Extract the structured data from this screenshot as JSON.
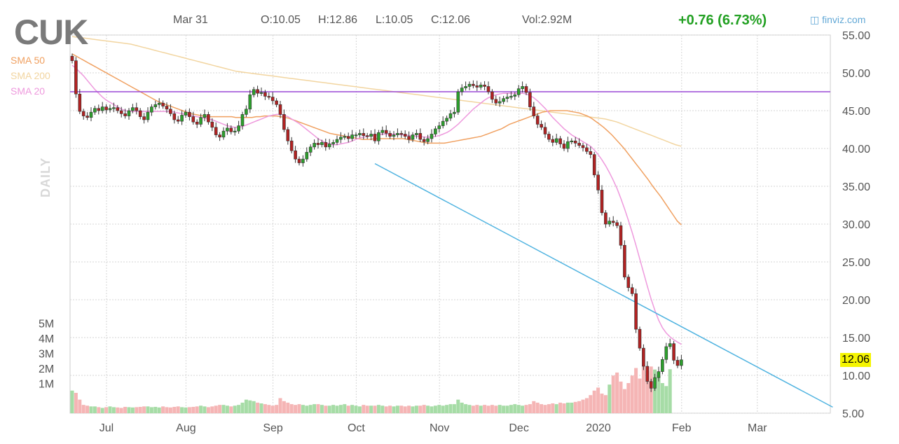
{
  "header": {
    "ticker": "CUK",
    "date": "Mar 31",
    "open": "O:10.05",
    "high": "H:12.86",
    "low": "L:10.05",
    "close": "C:12.06",
    "volume": "Vol:2.92M",
    "change": "+0.76 (6.73%)",
    "brand": "finviz.com",
    "brand_icon": "finviz-logo-icon"
  },
  "overlays": {
    "sma50": "SMA 50",
    "sma200": "SMA 200",
    "sma20": "SMA 20",
    "timeframe": "DAILY",
    "last_price": "12.06"
  },
  "colors": {
    "up": "#2ca02c",
    "down": "#b22222",
    "sma50": "#f0a060",
    "sma200": "#f2d5a0",
    "sma20": "#ee99dd",
    "resistance": "#9a49d6",
    "trendline": "#4fb3e0",
    "vol_up": "#a6dca6",
    "vol_down": "#f5b5b5",
    "last_price_bg": "#f5f500"
  },
  "chart_data": {
    "type": "candlestick",
    "title": "CUK",
    "ylim": [
      5,
      55
    ],
    "y_ticks": [
      "55.00",
      "50.00",
      "45.00",
      "40.00",
      "35.00",
      "30.00",
      "25.00",
      "20.00",
      "15.00",
      "10.00",
      "5.00"
    ],
    "y_tick_values": [
      55,
      50,
      45,
      40,
      35,
      30,
      25,
      20,
      15,
      10,
      5
    ],
    "volume_ticks": [
      "5M",
      "4M",
      "3M",
      "2M",
      "1M"
    ],
    "volume_tick_values": [
      5,
      4,
      3,
      2,
      1
    ],
    "x_labels": [
      "Jul",
      "Aug",
      "Sep",
      "Oct",
      "Nov",
      "Dec",
      "2020",
      "Feb",
      "Mar"
    ],
    "x_label_index": [
      10,
      31,
      54,
      76,
      98,
      119,
      140,
      162,
      182
    ],
    "grid": true,
    "price_series": [
      51.6,
      47.2,
      44.9,
      44.3,
      44.1,
      44.8,
      45.3,
      45.0,
      45.5,
      45.1,
      45.3,
      45.4,
      45.0,
      44.6,
      44.3,
      45.0,
      45.4,
      45.0,
      44.2,
      43.8,
      44.8,
      45.5,
      45.8,
      46.0,
      45.6,
      45.2,
      44.6,
      43.8,
      43.6,
      44.4,
      44.8,
      44.2,
      43.5,
      43.2,
      44.1,
      44.5,
      43.5,
      42.8,
      41.8,
      41.5,
      42.3,
      42.7,
      42.2,
      42.3,
      43.0,
      44.5,
      45.2,
      47.1,
      47.8,
      47.3,
      47.4,
      46.9,
      46.8,
      46.3,
      45.8,
      44.5,
      42.5,
      41.0,
      39.7,
      38.6,
      38.1,
      38.6,
      39.5,
      40.2,
      40.7,
      40.5,
      40.8,
      40.2,
      40.6,
      40.8,
      41.2,
      41.5,
      41.6,
      41.3,
      41.8,
      41.8,
      42.0,
      41.7,
      41.6,
      41.9,
      41.0,
      42.1,
      42.4,
      42.0,
      41.6,
      41.8,
      42.0,
      41.9,
      41.6,
      41.2,
      41.8,
      42.0,
      41.2,
      40.9,
      41.3,
      41.9,
      42.6,
      43.0,
      43.6,
      44.0,
      44.6,
      44.8,
      47.5,
      48.0,
      48.2,
      48.5,
      48.3,
      48.1,
      48.4,
      48.2,
      47.5,
      46.5,
      46.0,
      46.2,
      46.6,
      46.8,
      46.9,
      47.1,
      47.9,
      48.2,
      47.4,
      45.5,
      44.3,
      43.2,
      42.8,
      41.9,
      41.2,
      40.8,
      41.3,
      40.6,
      40.0,
      40.9,
      41.0,
      40.7,
      40.4,
      40.1,
      39.6,
      39.2,
      36.5,
      34.5,
      31.5,
      30.0,
      30.4,
      30.2,
      29.8,
      27.2,
      23.0,
      21.6,
      20.8,
      16.1,
      13.6,
      11.2,
      9.2,
      8.3,
      9.7,
      10.5,
      12.1,
      13.8,
      14.2,
      12.0,
      11.3,
      12.06
    ],
    "volume_series_millions": [
      1.5,
      1.35,
      0.9,
      0.55,
      0.5,
      0.45,
      0.45,
      0.4,
      0.35,
      0.4,
      0.45,
      0.4,
      0.38,
      0.35,
      0.42,
      0.4,
      0.38,
      0.4,
      0.42,
      0.45,
      0.45,
      0.4,
      0.42,
      0.38,
      0.45,
      0.4,
      0.38,
      0.42,
      0.45,
      0.4,
      0.38,
      0.4,
      0.42,
      0.45,
      0.5,
      0.45,
      0.4,
      0.45,
      0.5,
      0.55,
      0.55,
      0.5,
      0.45,
      0.5,
      0.55,
      0.7,
      0.9,
      0.85,
      0.8,
      0.7,
      0.65,
      0.6,
      0.55,
      0.5,
      0.55,
      1.0,
      0.8,
      0.7,
      0.6,
      0.55,
      0.6,
      0.55,
      0.5,
      0.55,
      0.6,
      0.6,
      0.55,
      0.5,
      0.5,
      0.55,
      0.5,
      0.55,
      0.6,
      0.5,
      0.55,
      0.5,
      0.45,
      0.55,
      0.5,
      0.5,
      0.5,
      0.55,
      0.5,
      0.45,
      0.5,
      0.45,
      0.5,
      0.5,
      0.45,
      0.5,
      0.45,
      0.5,
      0.5,
      0.55,
      0.5,
      0.45,
      0.5,
      0.55,
      0.5,
      0.55,
      0.6,
      0.6,
      0.9,
      0.7,
      0.6,
      0.55,
      0.5,
      0.55,
      0.5,
      0.55,
      0.5,
      0.55,
      0.5,
      0.55,
      0.5,
      0.5,
      0.55,
      0.6,
      0.55,
      0.5,
      0.55,
      0.6,
      0.8,
      0.7,
      0.6,
      0.55,
      0.6,
      0.65,
      0.6,
      0.7,
      0.65,
      0.7,
      0.7,
      0.75,
      0.8,
      0.9,
      1.0,
      1.2,
      1.5,
      1.7,
      1.3,
      1.2,
      1.9,
      2.5,
      2.7,
      2.1,
      1.6,
      2.0,
      2.5,
      3.0,
      2.3,
      3.1,
      2.8,
      3.1,
      2.9,
      2.5,
      2.0,
      1.8,
      2.92
    ],
    "sma20": [
      51.0,
      50.6,
      50.1,
      49.6,
      49.0,
      48.4,
      47.8,
      47.3,
      46.8,
      46.4,
      46.1,
      45.8,
      45.5,
      45.2,
      45.0,
      44.9,
      44.9,
      44.9,
      44.9,
      44.9,
      44.9,
      44.9,
      44.9,
      44.9,
      44.9,
      44.9,
      44.9,
      44.8,
      44.7,
      44.6,
      44.5,
      44.4,
      44.3,
      44.2,
      44.1,
      44.0,
      43.9,
      43.8,
      43.6,
      43.4,
      43.2,
      43.0,
      42.9,
      42.8,
      42.8,
      42.9,
      43.1,
      43.3,
      43.5,
      43.7,
      43.9,
      44.1,
      44.3,
      44.4,
      44.5,
      44.5,
      44.4,
      44.2,
      43.9,
      43.6,
      43.3,
      42.9,
      42.5,
      42.1,
      41.7,
      41.3,
      41.0,
      40.8,
      40.6,
      40.5,
      40.5,
      40.6,
      40.7,
      40.8,
      41.0,
      41.2,
      41.4,
      41.5,
      41.6,
      41.7,
      41.8,
      41.8,
      41.9,
      41.9,
      41.9,
      41.9,
      41.9,
      41.8,
      41.8,
      41.7,
      41.7,
      41.6,
      41.6,
      41.5,
      41.5,
      41.5,
      41.6,
      41.7,
      41.9,
      42.1,
      42.4,
      42.8,
      43.2,
      43.7,
      44.2,
      44.7,
      45.2,
      45.6,
      46.0,
      46.4,
      46.7,
      46.9,
      47.1,
      47.2,
      47.3,
      47.3,
      47.3,
      47.3,
      47.3,
      47.3,
      47.2,
      47.0,
      46.7,
      46.3,
      45.8,
      45.3,
      44.7,
      44.1,
      43.6,
      43.1,
      42.6,
      42.2,
      41.8,
      41.5,
      41.2,
      40.9,
      40.6,
      40.3,
      39.8,
      39.2,
      38.5,
      37.7,
      36.8,
      35.8,
      34.7,
      33.4,
      32.0,
      30.5,
      28.9,
      27.2,
      25.4,
      23.6,
      21.8,
      20.1,
      18.6,
      17.3,
      16.3,
      15.6,
      15.1,
      14.7,
      14.4,
      14.1
    ],
    "sma50": [
      52.5,
      52.2,
      51.9,
      51.6,
      51.3,
      51.0,
      50.7,
      50.4,
      50.1,
      49.8,
      49.5,
      49.2,
      48.9,
      48.6,
      48.3,
      48.0,
      47.7,
      47.4,
      47.1,
      46.8,
      46.5,
      46.2,
      46.0,
      45.8,
      45.6,
      45.4,
      45.2,
      45.0,
      44.8,
      44.6,
      44.5,
      44.4,
      44.3,
      44.2,
      44.2,
      44.2,
      44.2,
      44.2,
      44.2,
      44.2,
      44.1,
      44.1,
      44.1,
      44.1,
      44.1,
      44.2,
      44.2,
      44.3,
      44.3,
      44.3,
      44.3,
      44.2,
      44.1,
      44.0,
      43.8,
      43.6,
      43.4,
      43.2,
      43.0,
      42.8,
      42.6,
      42.4,
      42.2,
      42.0,
      41.9,
      41.8,
      41.7,
      41.6,
      41.5,
      41.4,
      41.3,
      41.2,
      41.2,
      41.2,
      41.3,
      41.3,
      41.3,
      41.3,
      41.3,
      41.3,
      41.3,
      41.3,
      41.2,
      41.1,
      41.0,
      40.9,
      40.8,
      40.7,
      40.7,
      40.7,
      40.7,
      40.7,
      40.8,
      40.9,
      41.0,
      41.1,
      41.2,
      41.3,
      41.4,
      41.5,
      41.6,
      41.8,
      42.0,
      42.2,
      42.4,
      42.6,
      42.9,
      43.2,
      43.4,
      43.6,
      43.8,
      44.0,
      44.2,
      44.4,
      44.6,
      44.8,
      44.9,
      45.0,
      45.0,
      45.0,
      45.0,
      45.0,
      44.9,
      44.8,
      44.7,
      44.5,
      44.3,
      44.0,
      43.6,
      43.2,
      42.8,
      42.3,
      41.8,
      41.2,
      40.6,
      40.0,
      39.3,
      38.6,
      37.9,
      37.2,
      36.5,
      35.8,
      35.0,
      34.3,
      33.6,
      32.8,
      32.0,
      31.2,
      30.4,
      29.9
    ],
    "sma200": [
      54.8,
      54.7,
      54.6,
      54.5,
      54.4,
      54.3,
      54.2,
      54.1,
      54.0,
      53.9,
      53.8,
      53.6,
      53.4,
      53.2,
      53.0,
      52.8,
      52.6,
      52.4,
      52.2,
      52.0,
      51.8,
      51.6,
      51.4,
      51.2,
      51.0,
      50.8,
      50.6,
      50.4,
      50.2,
      50.1,
      50.0,
      49.9,
      49.8,
      49.7,
      49.6,
      49.5,
      49.4,
      49.3,
      49.2,
      49.1,
      49.0,
      48.9,
      48.8,
      48.7,
      48.6,
      48.5,
      48.4,
      48.3,
      48.2,
      48.1,
      48.0,
      47.9,
      47.8,
      47.7,
      47.6,
      47.5,
      47.4,
      47.3,
      47.2,
      47.1,
      47.0,
      46.9,
      46.8,
      46.7,
      46.6,
      46.5,
      46.4,
      46.3,
      46.2,
      46.1,
      46.0,
      45.9,
      45.8,
      45.7,
      45.6,
      45.5,
      45.4,
      45.3,
      45.2,
      45.1,
      45.0,
      44.9,
      44.8,
      44.7,
      44.6,
      44.5,
      44.4,
      44.3,
      44.2,
      44.1,
      44.0,
      43.9,
      43.7,
      43.5,
      43.2,
      42.9,
      42.6,
      42.3,
      42.0,
      41.7,
      41.4,
      41.1,
      40.8,
      40.5,
      40.3
    ],
    "resistance_level": 47.5,
    "trendline": {
      "start_index": 80,
      "start_value": 38.0,
      "end_index": 201,
      "end_value": 5.8
    }
  }
}
